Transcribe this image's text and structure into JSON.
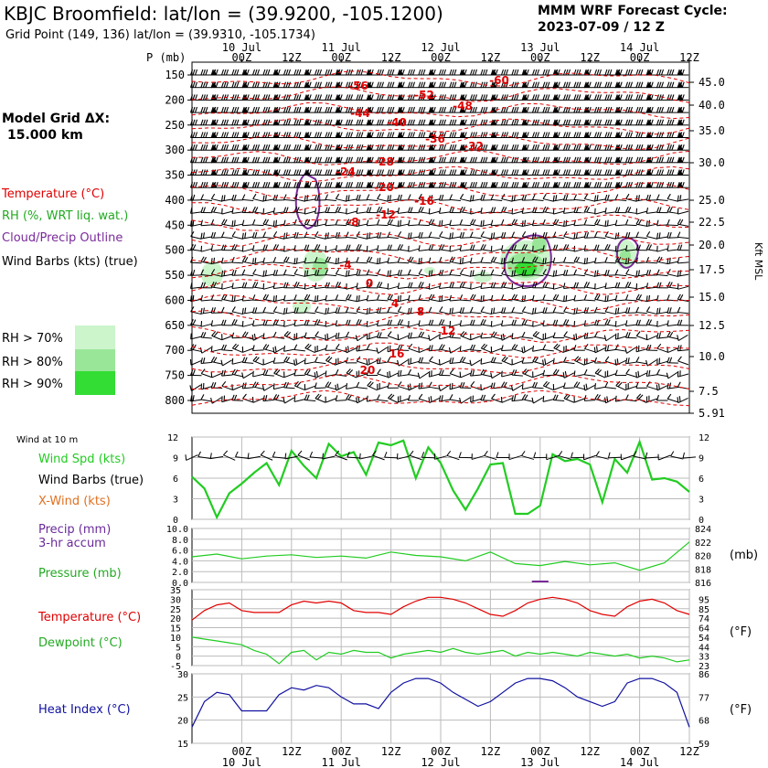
{
  "header": {
    "title": "KBJC Broomfield:  lat/lon = (39.9200, -105.1200)",
    "subtitle": "Grid Point (149, 136) lat/lon = (39.9310, -105.1734)",
    "cycle_line1": "MMM WRF Forecast Cycle:",
    "cycle_line2": "2023-07-09 / 12  Z",
    "model_grid_line1": "Model Grid ΔX:",
    "model_grid_line2": "15.000 km"
  },
  "colors": {
    "temperature": "#e00000",
    "rh": "#22cc22",
    "cloud": "#7a2a9a",
    "xwind": "#e07020",
    "dewpoint": "#22cc22",
    "heat_index": "#1010a0",
    "precip_label": "#6a2a9a",
    "rh70": "#ccf5cc",
    "rh80": "#99e699",
    "rh90": "#33dd33"
  },
  "legend": {
    "temperature": "Temperature (°C)",
    "rh": "RH (%, WRT liq. wat.)",
    "cloud": "Cloud/Precip Outline",
    "barbs": "Wind Barbs (kts) (true)",
    "rh70": "RH > 70%",
    "rh80": "RH > 80%",
    "rh90": "RH > 90%"
  },
  "time_axis": {
    "hour_labels": [
      "00Z",
      "12Z",
      "00Z",
      "12Z",
      "00Z",
      "12Z",
      "00Z",
      "12Z",
      "00Z",
      "12Z"
    ],
    "day_labels": [
      "10 Jul",
      "11 Jul",
      "12 Jul",
      "13 Jul",
      "14 Jul"
    ]
  },
  "chart_data": [
    {
      "type": "heatmap",
      "name": "upper_air_cross_section",
      "ylabel": "P (mb)",
      "y2label": "Kft MSL",
      "yticks": [
        150,
        200,
        250,
        300,
        350,
        400,
        450,
        500,
        550,
        600,
        650,
        700,
        750,
        800
      ],
      "y2ticks": [
        "45.0",
        "40.0",
        "35.0",
        "30.0",
        "25.0",
        "22.5",
        "20.0",
        "17.5",
        "15.0",
        "12.5",
        "10.0",
        "7.5",
        "5.91"
      ],
      "temperature_contour_labels": [
        "-60",
        "-56",
        "-52",
        "-48",
        "-44",
        "-40",
        "-36",
        "-32",
        "-28",
        "-24",
        "-20",
        "-16",
        "-12",
        "-8",
        "-4",
        "0",
        "4",
        "8",
        "12",
        "16",
        "20"
      ]
    },
    {
      "type": "line",
      "name": "wind_10m",
      "title": "Wind at 10 m",
      "ylim": [
        0,
        12
      ],
      "yticks": [
        0,
        3,
        6,
        9,
        12
      ],
      "labels": {
        "speed": "Wind Spd (kts)",
        "barbs": "Wind Barbs (true)",
        "xwind": "X-Wind (kts)"
      },
      "series": [
        {
          "name": "Wind Spd (kts)",
          "x": [
            0,
            3,
            6,
            9,
            12,
            15,
            18,
            21,
            24,
            27,
            30,
            33,
            36,
            39,
            42,
            45,
            48,
            51,
            54,
            57,
            60,
            63,
            66,
            69,
            72,
            75,
            78,
            81,
            84,
            87,
            90,
            93,
            96,
            99,
            102,
            105,
            108,
            111,
            114,
            117,
            120
          ],
          "values": [
            6.2,
            4.5,
            0.3,
            3.8,
            5.2,
            6.8,
            8.2,
            5.0,
            10.0,
            7.8,
            6.0,
            11.0,
            9.2,
            9.8,
            6.5,
            11.2,
            10.8,
            11.5,
            6.0,
            10.5,
            8.2,
            4.2,
            1.4,
            4.5,
            8.0,
            8.2,
            0.8,
            0.8,
            2.0,
            9.5,
            8.5,
            8.8,
            8.0,
            2.5,
            8.8,
            6.8,
            11.3,
            5.8,
            6.0,
            5.5,
            4.0
          ]
        }
      ]
    },
    {
      "type": "line",
      "name": "precip_pressure",
      "labels": {
        "precip_line1": "Precip (mm)",
        "precip_line2": "3-hr accum",
        "pressure": "Pressure (mb)"
      },
      "ylim": [
        0,
        10
      ],
      "yticks": [
        "0.0",
        "2.0",
        "4.0",
        "6.0",
        "8.0",
        "10.0"
      ],
      "y2lim": [
        816,
        824
      ],
      "y2ticks": [
        "816",
        "818",
        "820",
        "822",
        "824"
      ],
      "y2unit": "(mb)",
      "series": [
        {
          "name": "Pressure (mb)",
          "x": [
            0,
            6,
            12,
            18,
            24,
            30,
            36,
            42,
            48,
            54,
            60,
            66,
            72,
            78,
            84,
            90,
            96,
            102,
            108,
            114,
            120
          ],
          "values": [
            819.8,
            820.2,
            819.5,
            819.9,
            820.1,
            819.7,
            819.9,
            819.6,
            820.5,
            820.0,
            819.8,
            819.2,
            820.5,
            818.8,
            818.5,
            819.1,
            818.6,
            818.9,
            817.8,
            818.9,
            822.0
          ]
        }
      ]
    },
    {
      "type": "line",
      "name": "temperature_dewpoint",
      "labels": {
        "temperature": "Temperature (°C)",
        "dewpoint": "Dewpoint (°C)"
      },
      "ylim": [
        -5,
        35
      ],
      "yticks": [
        -5,
        0,
        5,
        10,
        15,
        20,
        25,
        30,
        35
      ],
      "y2ticks": [
        "23",
        "33",
        "44",
        "54",
        "64",
        "74",
        "85",
        "95"
      ],
      "y2unit": "(°F)",
      "series": [
        {
          "name": "Temperature (°C)",
          "x": [
            0,
            3,
            6,
            9,
            12,
            15,
            18,
            21,
            24,
            27,
            30,
            33,
            36,
            39,
            42,
            45,
            48,
            51,
            54,
            57,
            60,
            63,
            66,
            69,
            72,
            75,
            78,
            81,
            84,
            87,
            90,
            93,
            96,
            99,
            102,
            105,
            108,
            111,
            114,
            117,
            120
          ],
          "values": [
            19,
            24,
            27,
            28,
            24,
            23,
            23,
            23,
            27,
            29,
            28,
            29,
            28,
            24,
            23,
            23,
            22,
            26,
            29,
            31,
            31,
            30,
            28,
            25,
            22,
            21,
            24,
            28,
            30,
            31,
            30,
            28,
            24,
            22,
            21,
            26,
            29,
            30,
            28,
            24,
            22
          ]
        },
        {
          "name": "Dewpoint (°C)",
          "x": [
            0,
            3,
            6,
            9,
            12,
            15,
            18,
            21,
            24,
            27,
            30,
            33,
            36,
            39,
            42,
            45,
            48,
            51,
            54,
            57,
            60,
            63,
            66,
            69,
            72,
            75,
            78,
            81,
            84,
            87,
            90,
            93,
            96,
            99,
            102,
            105,
            108,
            111,
            114,
            117,
            120
          ],
          "values": [
            10,
            9,
            8,
            7,
            6,
            3,
            1,
            -4,
            2,
            3,
            -2,
            2,
            1,
            3,
            2,
            2,
            -1,
            1,
            2,
            3,
            2,
            4,
            2,
            1,
            2,
            3,
            0,
            2,
            1,
            2,
            1,
            0,
            2,
            1,
            0,
            1,
            -1,
            0,
            -1,
            -3,
            -2
          ]
        }
      ]
    },
    {
      "type": "line",
      "name": "heat_index",
      "labels": {
        "heat_index": "Heat Index (°C)"
      },
      "ylim": [
        15,
        30
      ],
      "yticks": [
        15,
        20,
        25,
        30
      ],
      "y2ticks": [
        "59",
        "68",
        "77",
        "86"
      ],
      "y2unit": "(°F)",
      "series": [
        {
          "name": "Heat Index (°C)",
          "x": [
            0,
            3,
            6,
            9,
            12,
            15,
            18,
            21,
            24,
            27,
            30,
            33,
            36,
            39,
            42,
            45,
            48,
            51,
            54,
            57,
            60,
            63,
            66,
            69,
            72,
            75,
            78,
            81,
            84,
            87,
            90,
            93,
            96,
            99,
            102,
            105,
            108,
            111,
            114,
            117,
            120
          ],
          "values": [
            18.5,
            24,
            26,
            25.5,
            22,
            22,
            22,
            25.5,
            27,
            26.5,
            27.5,
            27,
            25,
            23.5,
            23.5,
            22.5,
            26,
            28,
            29,
            29,
            28,
            26,
            24.5,
            23,
            24,
            26,
            28,
            29,
            29,
            28.5,
            27,
            25,
            24,
            23,
            24,
            28,
            29,
            29,
            28,
            26,
            18.5
          ]
        }
      ]
    }
  ]
}
